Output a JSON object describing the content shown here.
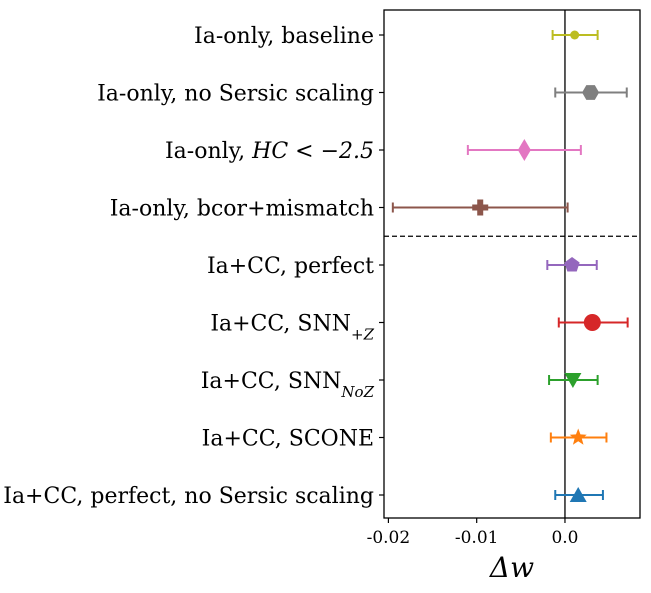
{
  "chart_data": {
    "type": "errorbar",
    "title": "",
    "xlabel": "Δw",
    "ylabel": "",
    "xlim": [
      -0.0205,
      0.0085
    ],
    "xticks": [
      -0.02,
      -0.01,
      0.0
    ],
    "xtick_labels": [
      "-0.02",
      "-0.01",
      "0.0"
    ],
    "zero_line": 0.0,
    "group_divider_after_index": 3,
    "series": [
      {
        "label_prefix": "Ia-only, baseline",
        "label_sub": "",
        "label_suffix": "",
        "value": 0.0011,
        "err_low": 0.0025,
        "err_high": 0.0026,
        "marker": "circle-small",
        "color": "#bcbd22"
      },
      {
        "label_prefix": "Ia-only, no Sersic scaling",
        "label_sub": "",
        "label_suffix": "",
        "value": 0.0029,
        "err_low": 0.004,
        "err_high": 0.0041,
        "marker": "hexagon",
        "color": "#7f7f7f"
      },
      {
        "label_prefix": "Ia-only, ",
        "label_math": "HC < −2.5",
        "label_sub": "",
        "label_suffix": "",
        "value": -0.0046,
        "err_low": 0.0064,
        "err_high": 0.0064,
        "marker": "diamond",
        "color": "#e377c2"
      },
      {
        "label_prefix": "Ia-only, bcor+mismatch",
        "label_sub": "",
        "label_suffix": "",
        "value": -0.0096,
        "err_low": 0.0099,
        "err_high": 0.0099,
        "marker": "plus",
        "color": "#8c564b"
      },
      {
        "label_prefix": "Ia+CC, perfect",
        "label_sub": "",
        "label_suffix": "",
        "value": 0.0008,
        "err_low": 0.0028,
        "err_high": 0.0028,
        "marker": "pentagon",
        "color": "#9467bd"
      },
      {
        "label_prefix": "Ia+CC, SNN",
        "label_sub": "+Z",
        "label_suffix": "",
        "value": 0.0031,
        "err_low": 0.0038,
        "err_high": 0.004,
        "marker": "circle",
        "color": "#d62728"
      },
      {
        "label_prefix": "Ia+CC, SNN",
        "label_sub": "NoZ",
        "label_suffix": "",
        "value": 0.0009,
        "err_low": 0.0027,
        "err_high": 0.0028,
        "marker": "triangle-down",
        "color": "#2ca02c"
      },
      {
        "label_prefix": "Ia+CC, SCONE",
        "label_sub": "",
        "label_suffix": "",
        "value": 0.0015,
        "err_low": 0.0031,
        "err_high": 0.0032,
        "marker": "star",
        "color": "#ff7f0e"
      },
      {
        "label_prefix": "Ia+CC, perfect, no Sersic scaling",
        "label_sub": "",
        "label_suffix": "",
        "value": 0.0015,
        "err_low": 0.0026,
        "err_high": 0.0028,
        "marker": "triangle-up",
        "color": "#1f77b4"
      }
    ]
  }
}
